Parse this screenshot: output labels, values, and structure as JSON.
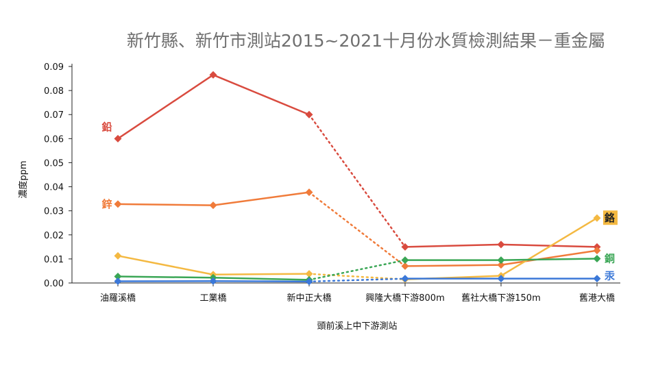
{
  "chart_data": {
    "type": "line",
    "title": "新竹縣、新竹市測站2015~2021十月份水質檢測結果－重金屬",
    "xlabel": "頭前溪上中下游測站",
    "ylabel": "濃度ppm",
    "ylim": [
      0,
      0.09
    ],
    "yticks": [
      "0.00",
      "0.01",
      "0.02",
      "0.03",
      "0.04",
      "0.05",
      "0.06",
      "0.07",
      "0.08",
      "0.09"
    ],
    "categories": [
      "油羅溪橋",
      "工業橋",
      "新中正大橋",
      "興隆大橋下游800m",
      "舊社大橋下游150m",
      "舊港大橋"
    ],
    "grid": false,
    "gap_style": "dotted segment between 新中正大橋 and 興隆大橋下游800m",
    "series": [
      {
        "name": "鉛",
        "color": "#d94b3f",
        "values": [
          0.06,
          0.0865,
          0.07,
          0.015,
          0.016,
          0.015
        ]
      },
      {
        "name": "鋅",
        "color": "#f07b3a",
        "values": [
          0.0328,
          0.0323,
          0.0377,
          0.007,
          0.0075,
          0.0135
        ]
      },
      {
        "name": "鉻",
        "color": "#f4b942",
        "values": [
          0.0113,
          0.0035,
          0.0038,
          0.0015,
          0.003,
          0.027
        ]
      },
      {
        "name": "銅",
        "color": "#3aa655",
        "values": [
          0.0027,
          0.0022,
          0.0013,
          0.0095,
          0.0095,
          0.0101
        ]
      },
      {
        "name": "汞",
        "color": "#3b78d8",
        "values": [
          0.0007,
          0.0008,
          0.0006,
          0.0018,
          0.0018,
          0.0018
        ]
      }
    ]
  }
}
